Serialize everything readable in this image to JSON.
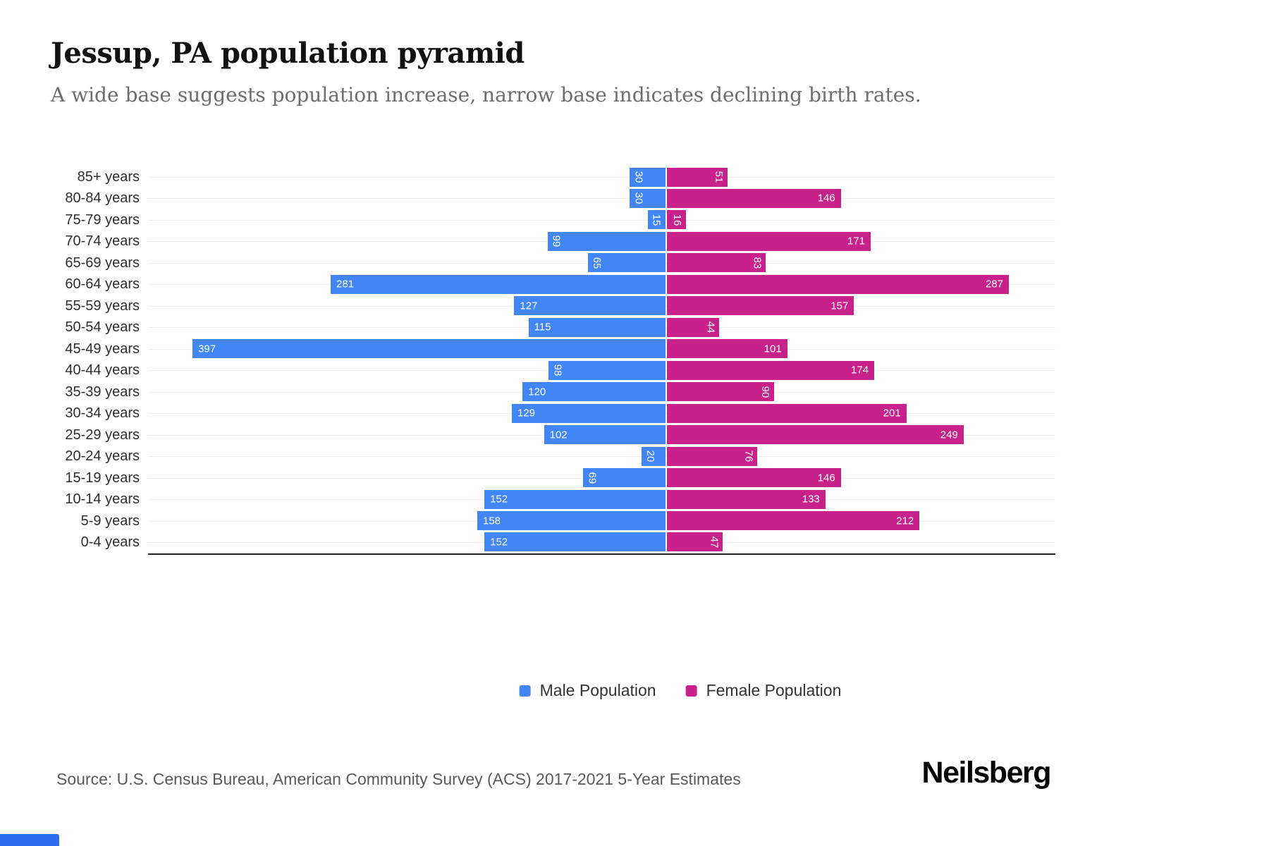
{
  "header": {
    "title": "Jessup, PA population pyramid",
    "subtitle": "A wide base suggests population increase, narrow base indicates declining birth rates."
  },
  "chart_data": {
    "type": "bar",
    "variant": "population-pyramid",
    "title": "Jessup, PA population pyramid",
    "subtitle": "A wide base suggests population increase, narrow base indicates declining birth rates.",
    "categories": [
      "85+ years",
      "80-84 years",
      "75-79 years",
      "70-74 years",
      "65-69 years",
      "60-64 years",
      "55-59 years",
      "50-54 years",
      "45-49 years",
      "40-44 years",
      "35-39 years",
      "30-34 years",
      "25-29 years",
      "20-24 years",
      "15-19 years",
      "10-14 years",
      "5-9 years",
      "0-4 years"
    ],
    "series": [
      {
        "name": "Male Population",
        "color": "#4285F4",
        "direction": "left",
        "values": [
          30,
          30,
          15,
          99,
          65,
          281,
          127,
          115,
          397,
          98,
          120,
          129,
          102,
          20,
          69,
          152,
          158,
          152
        ]
      },
      {
        "name": "Female Population",
        "color": "#C9218C",
        "direction": "right",
        "values": [
          51,
          146,
          16,
          171,
          83,
          287,
          157,
          44,
          101,
          174,
          90,
          201,
          249,
          76,
          146,
          133,
          212,
          47
        ]
      }
    ],
    "value_labels": "inside-outer-end, white, rotated 90deg when value < 100",
    "grid": true,
    "legend_position": "bottom",
    "xlabel": "",
    "ylabel": ""
  },
  "footer": {
    "source": "Source: U.S. Census Bureau, American Community Survey (ACS) 2017-2021 5-Year Estimates",
    "brand": "Neilsberg"
  }
}
